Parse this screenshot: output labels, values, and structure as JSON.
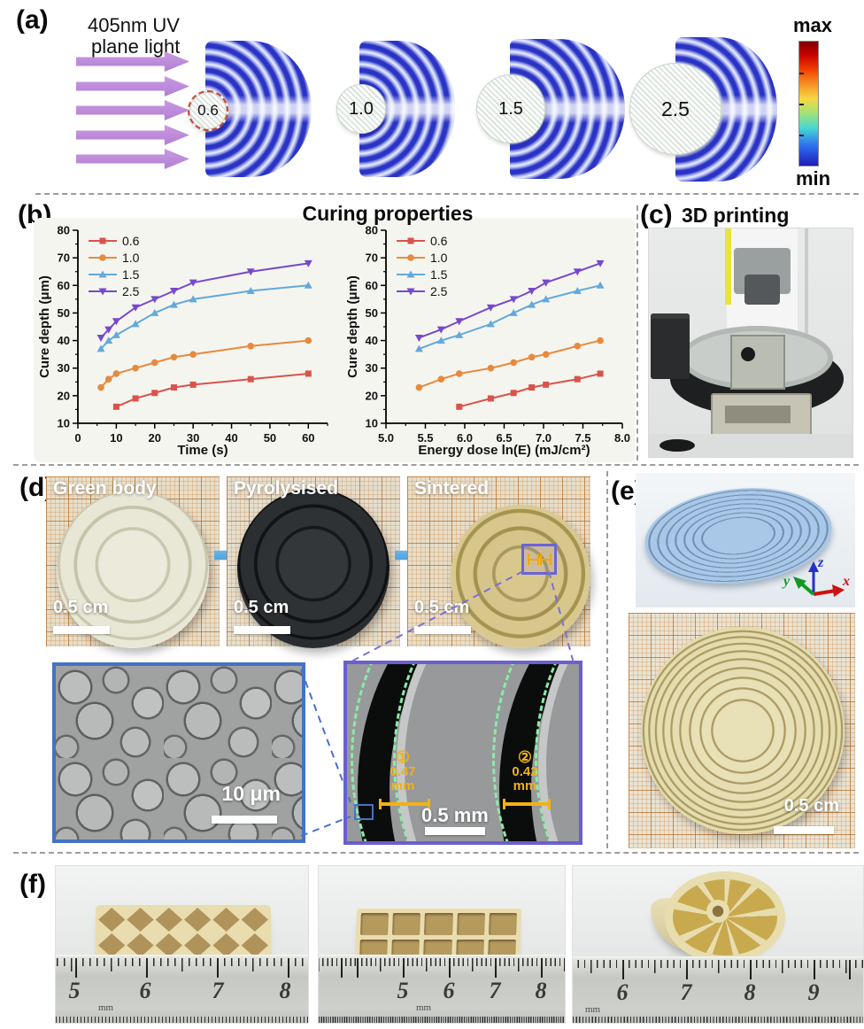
{
  "panel_a": {
    "label": "(a)",
    "light_line1": "405nm UV",
    "light_line2": "plane light",
    "sims": [
      {
        "label": "0.6"
      },
      {
        "label": "1.0"
      },
      {
        "label": "1.5"
      },
      {
        "label": "2.5"
      }
    ],
    "colorbar": {
      "max": "max",
      "min": "min"
    }
  },
  "panel_b": {
    "label": "(b)",
    "title": "Curing properties"
  },
  "panel_c": {
    "label": "(c)",
    "title": "3D printing"
  },
  "panel_d": {
    "label": "(d)",
    "stages": [
      {
        "title": "Green body",
        "scale_label": "0.5 cm"
      },
      {
        "title": "Pyrolysised",
        "scale_label": "0.5 cm"
      },
      {
        "title": "Sintered",
        "scale_label": "0.5 cm"
      }
    ],
    "sem_surface": {
      "scale_label": "10 μm"
    },
    "sem_grooves": {
      "scale_label": "0.5 mm",
      "measure1": {
        "index": "①",
        "value": "0.47",
        "unit": "mm"
      },
      "measure2": {
        "index": "②",
        "value": "0.42",
        "unit": "mm"
      }
    }
  },
  "panel_e": {
    "label": "(e)",
    "axis_labels": {
      "x": "x",
      "y": "y",
      "z": "z"
    },
    "scale_label": "0.5 cm"
  },
  "panel_f": {
    "label": "(f)",
    "photos": [
      {
        "ruler_numbers": [
          "5",
          "6",
          "7",
          "8"
        ],
        "ruler_unit": "mm"
      },
      {
        "ruler_numbers": [
          "5",
          "6",
          "7",
          "8"
        ],
        "ruler_unit": "mm"
      },
      {
        "ruler_numbers": [
          "6",
          "7",
          "8",
          "9"
        ],
        "ruler_unit": "mm"
      }
    ]
  },
  "colors": {
    "series_red": "#d9534b",
    "series_orange": "#e78a3e",
    "series_blue": "#63a9db",
    "series_purple": "#7648ce",
    "arrow_blue": "#3c96d8",
    "annotation_yellow": "#f2b212",
    "sem_border_blue": "#4472c4",
    "sem_border_purple": "#6a5fd0",
    "uv_arrow_purple": "#b27fd4"
  },
  "chart_data": [
    {
      "type": "line",
      "title": "",
      "xlabel": "Time (s)",
      "ylabel": "Cure depth (μm)",
      "xlim": [
        0,
        65
      ],
      "ylim": [
        10,
        80
      ],
      "xticks": [
        0,
        10,
        20,
        30,
        40,
        50,
        60
      ],
      "xtick_labels": [
        "0",
        "10",
        "20",
        "30",
        "40",
        "50",
        "60"
      ],
      "xminor": [
        5,
        15,
        25,
        35,
        45,
        55,
        65
      ],
      "yticks": [
        10,
        20,
        30,
        40,
        50,
        60,
        70,
        80
      ],
      "ytick_labels": [
        "10",
        "20",
        "30",
        "40",
        "50",
        "60",
        "70",
        "80"
      ],
      "yminor": [
        15,
        25,
        35,
        45,
        55,
        65,
        75
      ],
      "grid": false,
      "legend_position": "top-left",
      "series": [
        {
          "name": "0.6",
          "color": "#d9534b",
          "marker": "square",
          "x": [
            10,
            15,
            20,
            25,
            30,
            45,
            60
          ],
          "y": [
            16,
            19,
            21,
            23,
            24,
            26,
            28
          ]
        },
        {
          "name": "1.0",
          "color": "#e78a3e",
          "marker": "circle",
          "x": [
            6,
            8,
            10,
            15,
            20,
            25,
            30,
            45,
            60
          ],
          "y": [
            23,
            26,
            28,
            30,
            32,
            34,
            35,
            38,
            40
          ]
        },
        {
          "name": "1.5",
          "color": "#63a9db",
          "marker": "triangle-up",
          "x": [
            6,
            8,
            10,
            15,
            20,
            25,
            30,
            45,
            60
          ],
          "y": [
            37,
            40,
            42,
            46,
            50,
            53,
            55,
            58,
            60
          ]
        },
        {
          "name": "2.5",
          "color": "#7648ce",
          "marker": "triangle-down",
          "x": [
            6,
            8,
            10,
            15,
            20,
            25,
            30,
            45,
            60
          ],
          "y": [
            41,
            44,
            47,
            52,
            55,
            58,
            61,
            65,
            68
          ]
        }
      ]
    },
    {
      "type": "line",
      "title": "",
      "xlabel": "Energy dose ln(E) (mJ/cm²)",
      "ylabel": "Cure depth (μm)",
      "xlim": [
        5.0,
        8.0
      ],
      "ylim": [
        10,
        80
      ],
      "xticks": [
        5.0,
        5.5,
        6.0,
        6.5,
        7.0,
        7.5,
        8.0
      ],
      "xtick_labels": [
        "5.0",
        "5.5",
        "6.0",
        "6.5",
        "7.0",
        "7.5",
        "8.0"
      ],
      "xminor": [
        5.25,
        5.75,
        6.25,
        6.75,
        7.25,
        7.75
      ],
      "yticks": [
        10,
        20,
        30,
        40,
        50,
        60,
        70,
        80
      ],
      "ytick_labels": [
        "10",
        "20",
        "30",
        "40",
        "50",
        "60",
        "70",
        "80"
      ],
      "yminor": [
        15,
        25,
        35,
        45,
        55,
        65,
        75
      ],
      "grid": false,
      "legend_position": "top-left",
      "series": [
        {
          "name": "0.6",
          "color": "#d9534b",
          "marker": "square",
          "x": [
            5.93,
            6.33,
            6.62,
            6.85,
            7.03,
            7.43,
            7.72
          ],
          "y": [
            16,
            19,
            21,
            23,
            24,
            26,
            28
          ]
        },
        {
          "name": "1.0",
          "color": "#e78a3e",
          "marker": "circle",
          "x": [
            5.42,
            5.7,
            5.93,
            6.33,
            6.62,
            6.85,
            7.03,
            7.43,
            7.72
          ],
          "y": [
            23,
            26,
            28,
            30,
            32,
            34,
            35,
            38,
            40
          ]
        },
        {
          "name": "1.5",
          "color": "#63a9db",
          "marker": "triangle-up",
          "x": [
            5.42,
            5.7,
            5.93,
            6.33,
            6.62,
            6.85,
            7.03,
            7.43,
            7.72
          ],
          "y": [
            37,
            40,
            42,
            46,
            50,
            53,
            55,
            58,
            60
          ]
        },
        {
          "name": "2.5",
          "color": "#7648ce",
          "marker": "triangle-down",
          "x": [
            5.42,
            5.7,
            5.93,
            6.33,
            6.62,
            6.85,
            7.03,
            7.43,
            7.72
          ],
          "y": [
            41,
            44,
            47,
            52,
            55,
            58,
            61,
            65,
            68
          ]
        }
      ]
    }
  ]
}
